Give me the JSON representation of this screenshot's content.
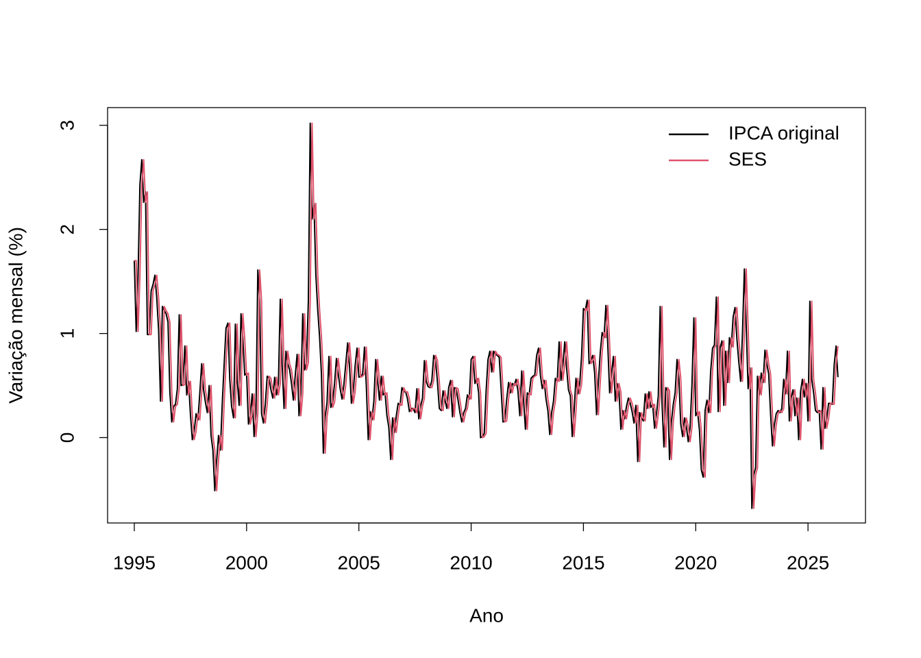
{
  "chart_data": {
    "type": "line",
    "x_label": "Ano",
    "y_label": "Variação mensal (%)",
    "xlim": [
      1993.81,
      2027.56
    ],
    "ylim": [
      -0.82,
      3.17
    ],
    "xticks": [
      1995,
      2000,
      2005,
      2010,
      2015,
      2020,
      2025
    ],
    "yticks": [
      0,
      1,
      2,
      3
    ],
    "legend_position": "top-right",
    "x": [
      1995,
      1995.083,
      1995.167,
      1995.25,
      1995.333,
      1995.417,
      1995.5,
      1995.583,
      1995.667,
      1995.75,
      1995.833,
      1995.917,
      1996,
      1996.083,
      1996.167,
      1996.25,
      1996.333,
      1996.417,
      1996.5,
      1996.583,
      1996.667,
      1996.75,
      1996.833,
      1996.917,
      1997,
      1997.083,
      1997.167,
      1997.25,
      1997.333,
      1997.417,
      1997.5,
      1997.583,
      1997.667,
      1997.75,
      1997.833,
      1997.917,
      1998,
      1998.083,
      1998.167,
      1998.25,
      1998.333,
      1998.417,
      1998.5,
      1998.583,
      1998.667,
      1998.75,
      1998.833,
      1998.917,
      1999,
      1999.083,
      1999.167,
      1999.25,
      1999.333,
      1999.417,
      1999.5,
      1999.583,
      1999.667,
      1999.75,
      1999.833,
      1999.917,
      2000,
      2000.083,
      2000.167,
      2000.25,
      2000.333,
      2000.417,
      2000.5,
      2000.583,
      2000.667,
      2000.75,
      2000.833,
      2000.917,
      2001,
      2001.083,
      2001.167,
      2001.25,
      2001.333,
      2001.417,
      2001.5,
      2001.583,
      2001.667,
      2001.75,
      2001.833,
      2001.917,
      2002,
      2002.083,
      2002.167,
      2002.25,
      2002.333,
      2002.417,
      2002.5,
      2002.583,
      2002.667,
      2002.75,
      2002.833,
      2002.917,
      2003,
      2003.083,
      2003.167,
      2003.25,
      2003.333,
      2003.417,
      2003.5,
      2003.583,
      2003.667,
      2003.75,
      2003.833,
      2003.917,
      2004,
      2004.083,
      2004.167,
      2004.25,
      2004.333,
      2004.417,
      2004.5,
      2004.583,
      2004.667,
      2004.75,
      2004.833,
      2004.917,
      2005,
      2005.083,
      2005.167,
      2005.25,
      2005.333,
      2005.417,
      2005.5,
      2005.583,
      2005.667,
      2005.75,
      2005.833,
      2005.917,
      2006,
      2006.083,
      2006.167,
      2006.25,
      2006.333,
      2006.417,
      2006.5,
      2006.583,
      2006.667,
      2006.75,
      2006.833,
      2006.917,
      2007,
      2007.083,
      2007.167,
      2007.25,
      2007.333,
      2007.417,
      2007.5,
      2007.583,
      2007.667,
      2007.75,
      2007.833,
      2007.917,
      2008,
      2008.083,
      2008.167,
      2008.25,
      2008.333,
      2008.417,
      2008.5,
      2008.583,
      2008.667,
      2008.75,
      2008.833,
      2008.917,
      2009,
      2009.083,
      2009.167,
      2009.25,
      2009.333,
      2009.417,
      2009.5,
      2009.583,
      2009.667,
      2009.75,
      2009.833,
      2009.917,
      2010,
      2010.083,
      2010.167,
      2010.25,
      2010.333,
      2010.417,
      2010.5,
      2010.583,
      2010.667,
      2010.75,
      2010.833,
      2010.917,
      2011,
      2011.083,
      2011.167,
      2011.25,
      2011.333,
      2011.417,
      2011.5,
      2011.583,
      2011.667,
      2011.75,
      2011.833,
      2011.917,
      2012,
      2012.083,
      2012.167,
      2012.25,
      2012.333,
      2012.417,
      2012.5,
      2012.583,
      2012.667,
      2012.75,
      2012.833,
      2012.917,
      2013,
      2013.083,
      2013.167,
      2013.25,
      2013.333,
      2013.417,
      2013.5,
      2013.583,
      2013.667,
      2013.75,
      2013.833,
      2013.917,
      2014,
      2014.083,
      2014.167,
      2014.25,
      2014.333,
      2014.417,
      2014.5,
      2014.583,
      2014.667,
      2014.75,
      2014.833,
      2014.917,
      2015,
      2015.083,
      2015.167,
      2015.25,
      2015.333,
      2015.417,
      2015.5,
      2015.583,
      2015.667,
      2015.75,
      2015.833,
      2015.917,
      2016,
      2016.083,
      2016.167,
      2016.25,
      2016.333,
      2016.417,
      2016.5,
      2016.583,
      2016.667,
      2016.75,
      2016.833,
      2016.917,
      2017,
      2017.083,
      2017.167,
      2017.25,
      2017.333,
      2017.417,
      2017.5,
      2017.583,
      2017.667,
      2017.75,
      2017.833,
      2017.917,
      2018,
      2018.083,
      2018.167,
      2018.25,
      2018.333,
      2018.417,
      2018.5,
      2018.583,
      2018.667,
      2018.75,
      2018.833,
      2018.917,
      2019,
      2019.083,
      2019.167,
      2019.25,
      2019.333,
      2019.417,
      2019.5,
      2019.583,
      2019.667,
      2019.75,
      2019.833,
      2019.917,
      2020,
      2020.083,
      2020.167,
      2020.25,
      2020.333,
      2020.417,
      2020.5,
      2020.583,
      2020.667,
      2020.75,
      2020.833,
      2020.917,
      2021,
      2021.083,
      2021.167,
      2021.25,
      2021.333,
      2021.417,
      2021.5,
      2021.583,
      2021.667,
      2021.75,
      2021.833,
      2021.917,
      2022,
      2022.083,
      2022.167,
      2022.25,
      2022.333,
      2022.417,
      2022.5,
      2022.583,
      2022.667,
      2022.75,
      2022.833,
      2022.917,
      2023,
      2023.083,
      2023.167,
      2023.25,
      2023.333,
      2023.417,
      2023.5,
      2023.583,
      2023.667,
      2023.75,
      2023.833,
      2023.917,
      2024,
      2024.083,
      2024.167,
      2024.25,
      2024.333,
      2024.417,
      2024.5,
      2024.583,
      2024.667,
      2024.75,
      2024.833,
      2024.917,
      2025,
      2025.083,
      2025.167,
      2025.25,
      2025.333,
      2025.417,
      2025.5,
      2025.583,
      2025.667,
      2025.75,
      2025.833,
      2025.917,
      2026,
      2026.083,
      2026.167,
      2026.25,
      2026.333
    ],
    "series": [
      {
        "name": "IPCA original",
        "color": "#000000",
        "values": [
          1.7,
          1.02,
          1.55,
          2.43,
          2.67,
          2.26,
          2.36,
          0.99,
          0.99,
          1.41,
          1.47,
          1.56,
          1.34,
          1.03,
          0.35,
          1.26,
          1.22,
          1.19,
          1.11,
          0.44,
          0.15,
          0.3,
          0.32,
          0.47,
          1.18,
          0.5,
          0.51,
          0.88,
          0.41,
          0.54,
          0.22,
          -0.02,
          0.06,
          0.23,
          0.17,
          0.43,
          0.71,
          0.46,
          0.34,
          0.24,
          0.5,
          0.02,
          -0.12,
          -0.51,
          -0.22,
          0.02,
          -0.12,
          0.33,
          0.7,
          1.05,
          1.1,
          0.56,
          0.3,
          0.19,
          1.09,
          0.56,
          0.31,
          1.19,
          0.95,
          0.6,
          0.62,
          0.13,
          0.22,
          0.42,
          0.01,
          0.23,
          1.61,
          1.31,
          0.23,
          0.14,
          0.32,
          0.59,
          0.57,
          0.46,
          0.38,
          0.58,
          0.41,
          0.52,
          1.33,
          0.7,
          0.28,
          0.83,
          0.71,
          0.65,
          0.52,
          0.36,
          0.6,
          0.8,
          0.21,
          0.42,
          1.19,
          0.65,
          0.72,
          1.31,
          3.02,
          2.1,
          2.25,
          1.57,
          1.23,
          0.97,
          0.61,
          -0.15,
          0.2,
          0.34,
          0.78,
          0.29,
          0.34,
          0.52,
          0.76,
          0.61,
          0.47,
          0.37,
          0.51,
          0.71,
          0.91,
          0.69,
          0.33,
          0.44,
          0.69,
          0.86,
          0.58,
          0.59,
          0.61,
          0.87,
          0.49,
          -0.02,
          0.25,
          0.17,
          0.35,
          0.75,
          0.55,
          0.36,
          0.59,
          0.41,
          0.43,
          0.21,
          0.1,
          -0.21,
          0.19,
          0.05,
          0.21,
          0.33,
          0.31,
          0.48,
          0.44,
          0.44,
          0.37,
          0.25,
          0.28,
          0.28,
          0.24,
          0.47,
          0.18,
          0.3,
          0.38,
          0.74,
          0.54,
          0.49,
          0.48,
          0.55,
          0.79,
          0.74,
          0.53,
          0.28,
          0.26,
          0.45,
          0.36,
          0.28,
          0.48,
          0.55,
          0.2,
          0.48,
          0.47,
          0.36,
          0.24,
          0.15,
          0.24,
          0.28,
          0.41,
          0.37,
          0.75,
          0.78,
          0.52,
          0.57,
          0.43,
          0.0,
          0.01,
          0.04,
          0.45,
          0.75,
          0.83,
          0.63,
          0.83,
          0.8,
          0.79,
          0.77,
          0.47,
          0.15,
          0.16,
          0.37,
          0.53,
          0.43,
          0.52,
          0.5,
          0.56,
          0.45,
          0.21,
          0.64,
          0.36,
          0.08,
          0.43,
          0.41,
          0.57,
          0.59,
          0.6,
          0.79,
          0.86,
          0.6,
          0.47,
          0.55,
          0.37,
          0.26,
          0.03,
          0.24,
          0.35,
          0.57,
          0.54,
          0.92,
          0.55,
          0.69,
          0.92,
          0.67,
          0.46,
          0.4,
          0.01,
          0.25,
          0.57,
          0.42,
          0.51,
          0.78,
          1.24,
          1.22,
          1.32,
          0.71,
          0.74,
          0.79,
          0.62,
          0.22,
          0.54,
          0.82,
          1.01,
          0.96,
          1.27,
          0.9,
          0.43,
          0.61,
          0.78,
          0.35,
          0.52,
          0.44,
          0.08,
          0.26,
          0.18,
          0.3,
          0.38,
          0.33,
          0.25,
          0.14,
          0.31,
          -0.23,
          0.24,
          0.19,
          0.16,
          0.42,
          0.28,
          0.44,
          0.29,
          0.32,
          0.09,
          0.22,
          0.4,
          1.26,
          0.33,
          -0.09,
          0.48,
          0.45,
          -0.21,
          0.15,
          0.32,
          0.43,
          0.75,
          0.57,
          0.13,
          0.01,
          0.19,
          0.11,
          -0.04,
          0.1,
          0.51,
          1.15,
          0.21,
          0.25,
          0.07,
          -0.31,
          -0.38,
          0.26,
          0.36,
          0.24,
          0.64,
          0.86,
          0.89,
          1.35,
          0.25,
          0.86,
          0.93,
          0.31,
          0.83,
          0.53,
          0.96,
          0.87,
          1.16,
          1.25,
          0.95,
          0.73,
          0.54,
          1.01,
          1.62,
          1.06,
          0.47,
          0.67,
          -0.68,
          -0.36,
          -0.29,
          0.59,
          0.41,
          0.62,
          0.53,
          0.84,
          0.71,
          0.61,
          0.23,
          -0.08,
          0.12,
          0.23,
          0.26,
          0.24,
          0.28,
          0.56,
          0.42,
          0.83,
          0.16,
          0.38,
          0.46,
          0.21,
          0.38,
          -0.02,
          0.44,
          0.56,
          0.39,
          0.52,
          0.16,
          1.31,
          0.56,
          0.43,
          0.26,
          0.24,
          0.26,
          -0.11,
          0.48,
          0.09,
          0.18,
          0.33,
          0.33,
          0.32,
          0.7,
          0.88,
          0.58
        ]
      },
      {
        "name": "SES",
        "color": "#DF536B",
        "values": [
          1.7,
          1.7,
          1.02,
          1.55,
          2.43,
          2.67,
          2.26,
          2.36,
          0.99,
          0.99,
          1.41,
          1.47,
          1.56,
          1.34,
          1.03,
          0.35,
          1.26,
          1.22,
          1.19,
          1.11,
          0.44,
          0.15,
          0.3,
          0.32,
          0.47,
          1.18,
          0.5,
          0.51,
          0.88,
          0.41,
          0.54,
          0.22,
          -0.02,
          0.06,
          0.23,
          0.17,
          0.43,
          0.71,
          0.46,
          0.34,
          0.24,
          0.5,
          0.02,
          -0.12,
          -0.51,
          -0.22,
          0.02,
          -0.12,
          0.33,
          0.7,
          1.05,
          1.1,
          0.56,
          0.3,
          0.19,
          1.09,
          0.56,
          0.31,
          1.19,
          0.95,
          0.6,
          0.62,
          0.13,
          0.22,
          0.42,
          0.01,
          0.23,
          1.61,
          1.31,
          0.23,
          0.14,
          0.32,
          0.59,
          0.57,
          0.46,
          0.38,
          0.58,
          0.41,
          0.52,
          1.33,
          0.7,
          0.28,
          0.83,
          0.71,
          0.65,
          0.52,
          0.36,
          0.6,
          0.8,
          0.21,
          0.42,
          1.19,
          0.65,
          0.72,
          1.31,
          3.02,
          2.1,
          2.25,
          1.57,
          1.23,
          0.97,
          0.61,
          -0.15,
          0.2,
          0.34,
          0.78,
          0.29,
          0.34,
          0.52,
          0.76,
          0.61,
          0.47,
          0.37,
          0.51,
          0.71,
          0.91,
          0.69,
          0.33,
          0.44,
          0.69,
          0.86,
          0.58,
          0.59,
          0.61,
          0.87,
          0.49,
          -0.02,
          0.25,
          0.17,
          0.35,
          0.75,
          0.55,
          0.36,
          0.59,
          0.41,
          0.43,
          0.21,
          0.1,
          -0.21,
          0.19,
          0.05,
          0.21,
          0.33,
          0.31,
          0.48,
          0.44,
          0.44,
          0.37,
          0.25,
          0.28,
          0.28,
          0.24,
          0.47,
          0.18,
          0.3,
          0.38,
          0.74,
          0.54,
          0.49,
          0.48,
          0.55,
          0.79,
          0.74,
          0.53,
          0.28,
          0.26,
          0.45,
          0.36,
          0.28,
          0.48,
          0.55,
          0.2,
          0.48,
          0.47,
          0.36,
          0.24,
          0.15,
          0.24,
          0.28,
          0.41,
          0.37,
          0.75,
          0.78,
          0.52,
          0.57,
          0.43,
          0.0,
          0.01,
          0.04,
          0.45,
          0.75,
          0.83,
          0.63,
          0.83,
          0.8,
          0.79,
          0.77,
          0.47,
          0.15,
          0.16,
          0.37,
          0.53,
          0.43,
          0.52,
          0.5,
          0.56,
          0.45,
          0.21,
          0.64,
          0.36,
          0.08,
          0.43,
          0.41,
          0.57,
          0.59,
          0.6,
          0.79,
          0.86,
          0.6,
          0.47,
          0.55,
          0.37,
          0.26,
          0.03,
          0.24,
          0.35,
          0.57,
          0.54,
          0.92,
          0.55,
          0.69,
          0.92,
          0.67,
          0.46,
          0.4,
          0.01,
          0.25,
          0.57,
          0.42,
          0.51,
          0.78,
          1.24,
          1.22,
          1.32,
          0.71,
          0.74,
          0.79,
          0.62,
          0.22,
          0.54,
          0.82,
          1.01,
          0.96,
          1.27,
          0.9,
          0.43,
          0.61,
          0.78,
          0.35,
          0.52,
          0.44,
          0.08,
          0.26,
          0.18,
          0.3,
          0.38,
          0.33,
          0.25,
          0.14,
          0.31,
          -0.23,
          0.24,
          0.19,
          0.16,
          0.42,
          0.28,
          0.44,
          0.29,
          0.32,
          0.09,
          0.22,
          0.4,
          1.26,
          0.33,
          -0.09,
          0.48,
          0.45,
          -0.21,
          0.15,
          0.32,
          0.43,
          0.75,
          0.57,
          0.13,
          0.01,
          0.19,
          0.11,
          -0.04,
          0.1,
          0.51,
          1.15,
          0.21,
          0.25,
          0.07,
          -0.31,
          -0.38,
          0.26,
          0.36,
          0.24,
          0.64,
          0.86,
          0.89,
          1.35,
          0.25,
          0.86,
          0.93,
          0.31,
          0.83,
          0.53,
          0.96,
          0.87,
          1.16,
          1.25,
          0.95,
          0.73,
          0.54,
          1.01,
          1.62,
          1.06,
          0.47,
          0.67,
          -0.68,
          -0.36,
          -0.29,
          0.59,
          0.41,
          0.62,
          0.53,
          0.84,
          0.71,
          0.61,
          0.23,
          -0.08,
          0.12,
          0.23,
          0.26,
          0.24,
          0.28,
          0.56,
          0.42,
          0.83,
          0.16,
          0.38,
          0.46,
          0.21,
          0.38,
          -0.02,
          0.44,
          0.56,
          0.39,
          0.52,
          0.16,
          1.31,
          0.56,
          0.43,
          0.26,
          0.24,
          0.26,
          -0.11,
          0.48,
          0.09,
          0.18,
          0.33,
          0.33,
          0.32,
          0.7,
          0.88
        ]
      }
    ]
  }
}
